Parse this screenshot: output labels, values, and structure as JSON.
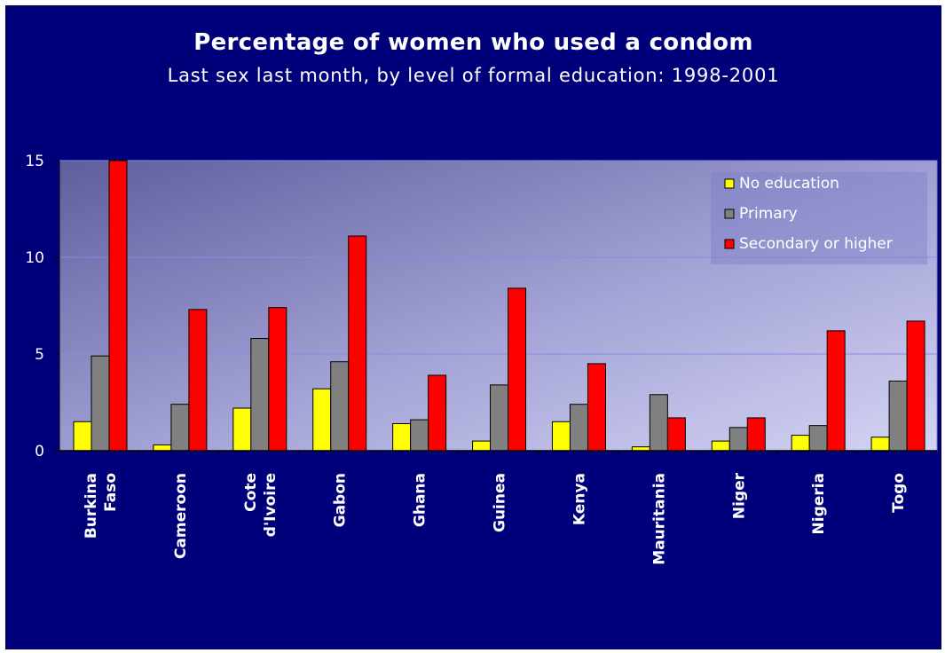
{
  "title": "Percentage of women who used a condom",
  "subtitle": "Last sex last month, by level of formal education: 1998-2001",
  "colors": {
    "background": "#00007a",
    "no_education": "#ffff00",
    "primary": "#808080",
    "secondary": "#ff0000"
  },
  "chart_data": {
    "type": "bar",
    "categories": [
      [
        "Burkina",
        "Faso"
      ],
      [
        "Cameroon"
      ],
      [
        "Cote",
        "d'Ivoire"
      ],
      [
        "Gabon"
      ],
      [
        "Ghana"
      ],
      [
        "Guinea"
      ],
      [
        "Kenya"
      ],
      [
        "Mauritania"
      ],
      [
        "Niger"
      ],
      [
        "Nigeria"
      ],
      [
        "Togo"
      ]
    ],
    "series": [
      {
        "name": "No education",
        "color": "#ffff00",
        "values": [
          1.5,
          0.3,
          2.2,
          3.2,
          1.4,
          0.5,
          1.5,
          0.2,
          0.5,
          0.8,
          0.7
        ]
      },
      {
        "name": "Primary",
        "color": "#808080",
        "values": [
          4.9,
          2.4,
          5.8,
          4.6,
          1.6,
          3.4,
          2.4,
          2.9,
          1.2,
          1.3,
          3.6
        ]
      },
      {
        "name": "Secondary or higher",
        "color": "#ff0000",
        "values": [
          15.0,
          7.3,
          7.4,
          11.1,
          3.9,
          8.4,
          4.5,
          1.7,
          1.7,
          6.2,
          6.7
        ]
      }
    ],
    "yticks": [
      0,
      5,
      10,
      15
    ],
    "ylim": [
      0,
      15
    ],
    "grid": true,
    "legend_position": "top-right"
  }
}
